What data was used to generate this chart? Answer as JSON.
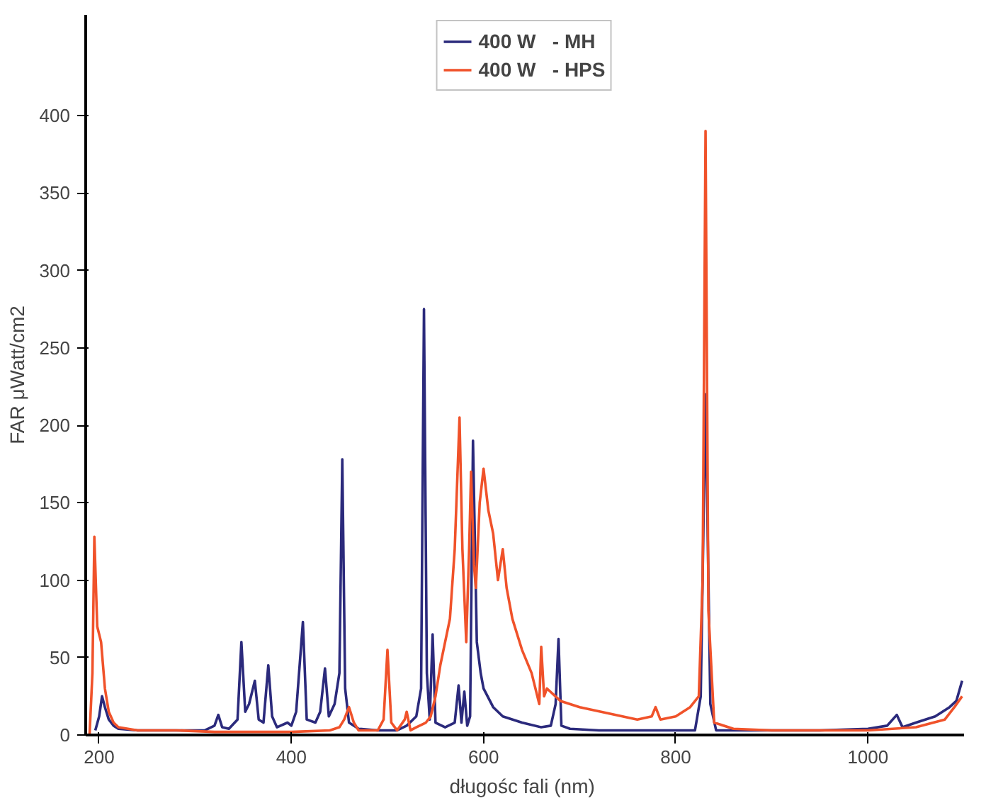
{
  "chart_data": {
    "type": "line",
    "xlabel": "długośc fali  (nm)",
    "ylabel": "FAR μWatt/cm2",
    "xlim": [
      186,
      1100
    ],
    "xticks": [
      200,
      400,
      600,
      800,
      1000
    ],
    "ylim": [
      0,
      465
    ],
    "yticks": [
      0,
      50,
      100,
      150,
      200,
      250,
      300,
      350,
      400
    ],
    "grid": false,
    "legend": "top",
    "marker": "none",
    "line_style": "solid",
    "series": [
      {
        "name": "400 W   - MH",
        "color": "#2b2a7c",
        "x": [
          196,
          200,
          203,
          206,
          210,
          215,
          220,
          240,
          280,
          310,
          320,
          324,
          328,
          335,
          344,
          348,
          352,
          356,
          362,
          366,
          371,
          376,
          380,
          385,
          396,
          400,
          405,
          412,
          416,
          425,
          430,
          435,
          439,
          445,
          450,
          453,
          456,
          460,
          470,
          490,
          510,
          520,
          530,
          535,
          538,
          541,
          544,
          547,
          550,
          560,
          570,
          574,
          577,
          580,
          583,
          586,
          589,
          593,
          597,
          600,
          610,
          620,
          640,
          660,
          670,
          675,
          678,
          681,
          690,
          720,
          780,
          820,
          826,
          831,
          836,
          842,
          880,
          950,
          1000,
          1020,
          1030,
          1036,
          1050,
          1070,
          1085,
          1092,
          1098
        ],
        "values": [
          3,
          12,
          25,
          18,
          10,
          6,
          4,
          3,
          3,
          3,
          6,
          13,
          5,
          4,
          10,
          60,
          15,
          20,
          35,
          10,
          8,
          45,
          12,
          5,
          8,
          6,
          15,
          73,
          10,
          8,
          15,
          43,
          12,
          20,
          40,
          178,
          30,
          8,
          4,
          3,
          3,
          6,
          12,
          30,
          275,
          40,
          10,
          65,
          8,
          5,
          8,
          32,
          8,
          28,
          6,
          12,
          190,
          60,
          40,
          30,
          18,
          12,
          8,
          5,
          6,
          20,
          62,
          6,
          4,
          3,
          3,
          3,
          25,
          220,
          20,
          3,
          3,
          3,
          4,
          6,
          13,
          5,
          8,
          12,
          18,
          22,
          35
        ]
      },
      {
        "name": "400 W   - HPS",
        "color": "#f0522a",
        "x": [
          190,
          193,
          195,
          198,
          202,
          206,
          210,
          215,
          220,
          240,
          280,
          320,
          400,
          440,
          450,
          455,
          460,
          465,
          470,
          490,
          496,
          500,
          504,
          510,
          518,
          520,
          524,
          530,
          540,
          545,
          550,
          555,
          560,
          565,
          570,
          575,
          578,
          582,
          585,
          587,
          590,
          592,
          596,
          600,
          605,
          610,
          615,
          620,
          624,
          630,
          640,
          650,
          658,
          660,
          663,
          666,
          680,
          700,
          730,
          760,
          775,
          779,
          784,
          800,
          815,
          824,
          828,
          831,
          834,
          840,
          860,
          900,
          1000,
          1050,
          1080,
          1090,
          1098
        ],
        "values": [
          0,
          40,
          128,
          70,
          60,
          30,
          15,
          8,
          5,
          3,
          3,
          2,
          2,
          3,
          5,
          10,
          18,
          8,
          3,
          3,
          10,
          55,
          8,
          3,
          10,
          15,
          3,
          5,
          8,
          12,
          25,
          45,
          60,
          75,
          120,
          205,
          120,
          60,
          120,
          170,
          110,
          95,
          150,
          172,
          145,
          130,
          100,
          120,
          95,
          75,
          55,
          40,
          20,
          57,
          25,
          30,
          22,
          18,
          14,
          10,
          12,
          18,
          10,
          12,
          18,
          25,
          100,
          390,
          80,
          8,
          4,
          3,
          3,
          5,
          10,
          18,
          25
        ]
      }
    ]
  }
}
